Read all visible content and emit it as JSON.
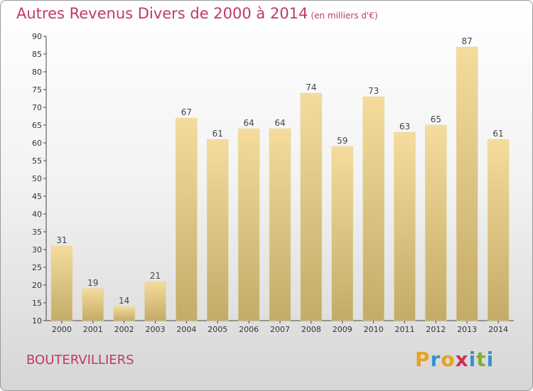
{
  "title": "Autres Revenus Divers de 2000 à 2014",
  "unit_note": "(en milliers d'€)",
  "location": "BOUTERVILLIERS",
  "brand": {
    "letters": [
      "P",
      "r",
      "o",
      "x",
      "i",
      "t",
      "i"
    ],
    "colors": [
      "#e8a020",
      "#3a8fd0",
      "#e8a020",
      "#d03050",
      "#3a8fd0",
      "#80b030",
      "#3a8fd0"
    ]
  },
  "chart_data": {
    "type": "bar",
    "categories": [
      "2000",
      "2001",
      "2002",
      "2003",
      "2004",
      "2005",
      "2006",
      "2007",
      "2008",
      "2009",
      "2010",
      "2011",
      "2012",
      "2013",
      "2014"
    ],
    "values": [
      31,
      19,
      14,
      21,
      67,
      61,
      64,
      64,
      74,
      59,
      73,
      63,
      65,
      87,
      61
    ],
    "ylim": [
      10,
      90
    ],
    "yticks": [
      10,
      15,
      20,
      25,
      30,
      35,
      40,
      45,
      50,
      55,
      60,
      65,
      70,
      75,
      80,
      85,
      90
    ],
    "grid": false,
    "bar_color_top": "#f5dc9c",
    "bar_color_bottom": "#c4ab68"
  }
}
